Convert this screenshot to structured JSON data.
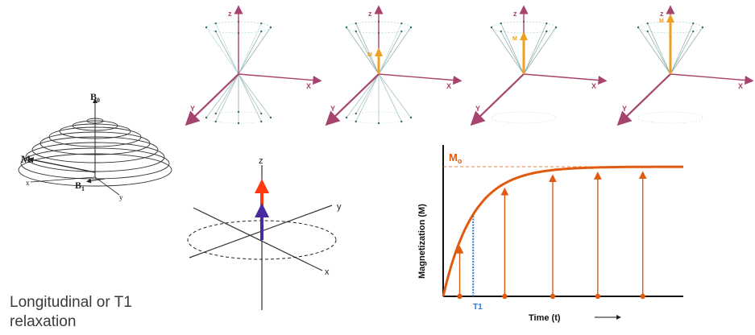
{
  "caption": {
    "line1": "Longitudinal or T1",
    "line2": "relaxation"
  },
  "precession": {
    "b0": "B",
    "b0_sub": "0",
    "b1": "B",
    "b1_sub": "1",
    "m": "M",
    "x": "x",
    "y": "y"
  },
  "cones": {
    "z": "z",
    "x": "X",
    "y": "Y",
    "m": "M"
  },
  "axes3d": {
    "z": "z",
    "x": "x",
    "y": "y"
  },
  "colors": {
    "pink_axis": "#a6436e",
    "orange_vector": "#f0a020",
    "curve": "#e05a10",
    "red_arrow": "#ff3a10",
    "purple_arrow": "#4a2aa0",
    "t1_marker": "#2a7ad6"
  },
  "chart_data": {
    "type": "line",
    "xlabel": "Time (t)",
    "ylabel": "Magnetization (M)",
    "asymptote_label": "M",
    "asymptote_sub": "o",
    "t1_label": "T1",
    "t1_position": 1,
    "sample_times": [
      0.55,
      2.05,
      3.65,
      5.15,
      6.65
    ],
    "curve": "M(t) = Mo (1 - e^(-t/T1))"
  }
}
